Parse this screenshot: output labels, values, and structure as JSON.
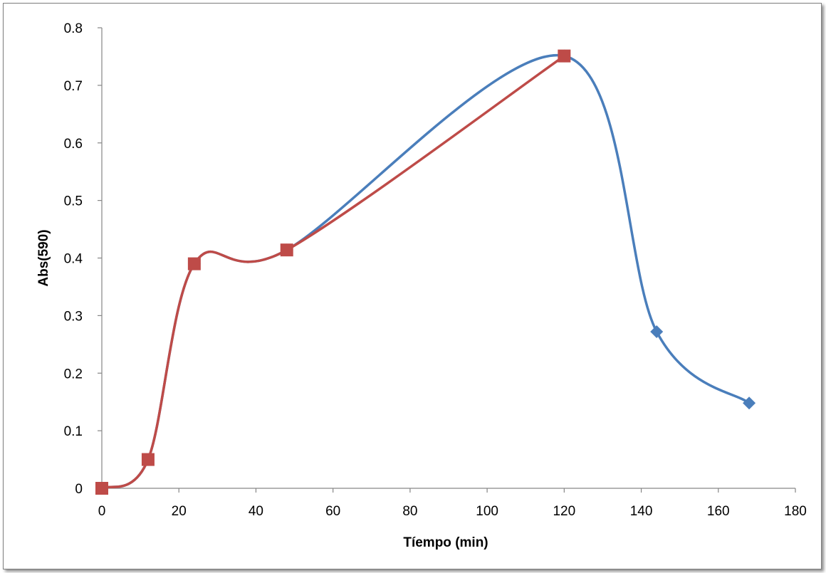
{
  "chart_data": {
    "type": "line",
    "title": "",
    "xlabel": "Tíempo (min)",
    "ylabel": "Abs(590)",
    "xlim": [
      0,
      180
    ],
    "ylim": [
      0,
      0.8
    ],
    "xticks": [
      "0",
      "20",
      "40",
      "60",
      "80",
      "100",
      "120",
      "140",
      "160",
      "180"
    ],
    "yticks": [
      "0",
      "0.1",
      "0.2",
      "0.3",
      "0.4",
      "0.5",
      "0.6",
      "0.7",
      "0.8"
    ],
    "grid": false,
    "legend": "none",
    "smooth": true,
    "series": [
      {
        "color": "#4a7ebb",
        "marker": "diamond",
        "x": [
          0,
          12,
          24,
          48,
          120,
          144,
          168
        ],
        "y": [
          0,
          0.05,
          0.39,
          0.414,
          0.751,
          0.272,
          0.148
        ]
      },
      {
        "color": "#be4b48",
        "marker": "square",
        "x": [
          0,
          12,
          24,
          48,
          120
        ],
        "y": [
          0,
          0.05,
          0.39,
          0.414,
          0.751
        ]
      }
    ]
  }
}
